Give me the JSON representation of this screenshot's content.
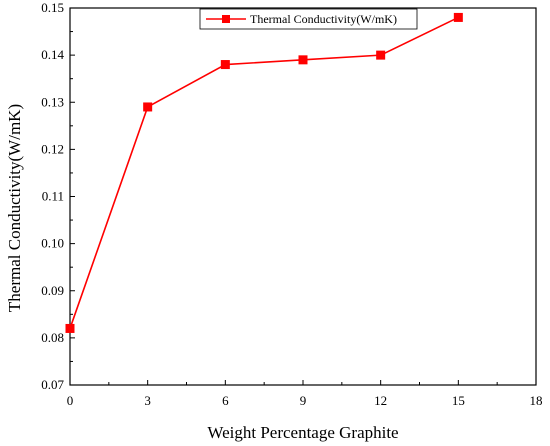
{
  "chart_data": {
    "type": "line",
    "xlabel": "Weight Percentage Graphite",
    "ylabel": "Thermal Conductivity(W/mK)",
    "xlim": [
      0,
      18
    ],
    "ylim": [
      0.07,
      0.15
    ],
    "xticks": [
      "0",
      "3",
      "6",
      "9",
      "12",
      "15",
      "18"
    ],
    "yticks": [
      "0.07",
      "0.08",
      "0.09",
      "0.10",
      "0.11",
      "0.12",
      "0.13",
      "0.14",
      "0.15"
    ],
    "legend_position": "top-center",
    "grid": false,
    "series": [
      {
        "name": "Thermal Conductivity(W/mK)",
        "color": "#ff0000",
        "marker": "square",
        "x": [
          0,
          3,
          6,
          9,
          12,
          15
        ],
        "y": [
          0.082,
          0.129,
          0.138,
          0.139,
          0.14,
          0.148
        ]
      }
    ]
  }
}
